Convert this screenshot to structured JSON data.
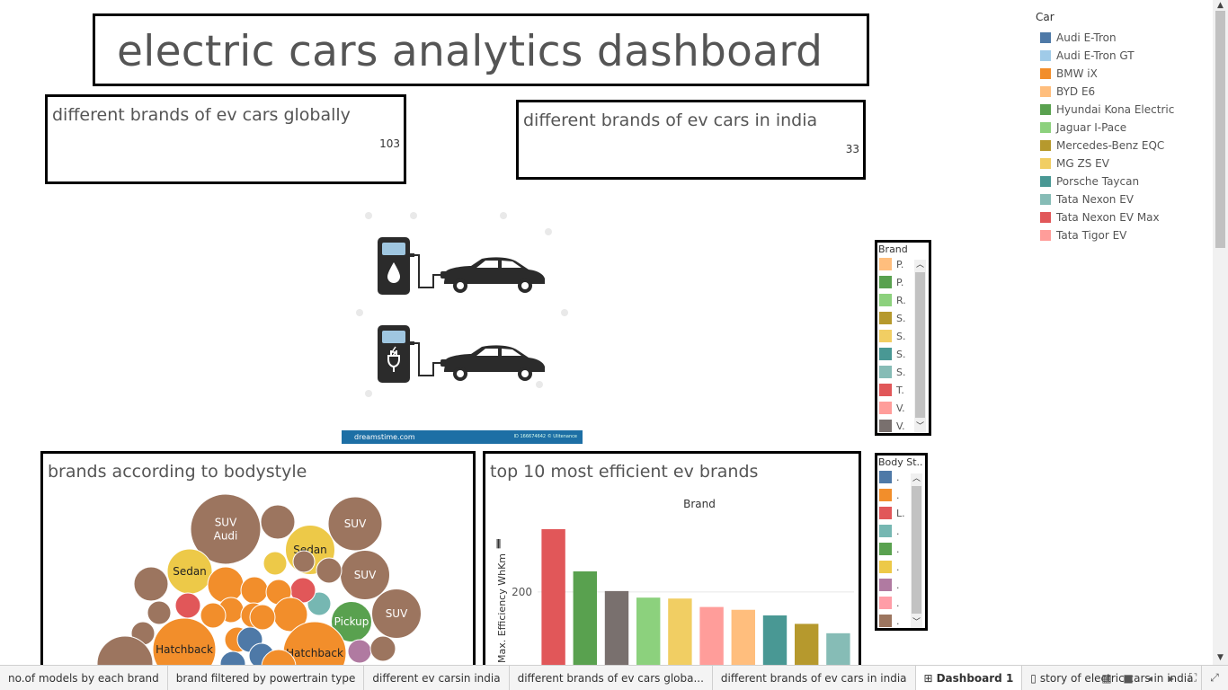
{
  "dashboard": {
    "title": "electric cars analytics dashboard"
  },
  "kpis": [
    {
      "label": "different brands of ev cars globally",
      "value": "103"
    },
    {
      "label": "different brands of ev cars in india",
      "value": "33"
    }
  ],
  "stock_image": {
    "watermark": "dreamstime.com",
    "credit": "ID 166674642 © Ulitenance"
  },
  "legend_car": {
    "title": "Car",
    "items": [
      {
        "label": "Audi E-Tron",
        "color": "#4e79a7"
      },
      {
        "label": "Audi E-Tron GT",
        "color": "#a0cbe8"
      },
      {
        "label": "BMW iX",
        "color": "#f28e2b"
      },
      {
        "label": "BYD E6",
        "color": "#ffbe7d"
      },
      {
        "label": "Hyundai Kona Electric",
        "color": "#59a14f"
      },
      {
        "label": "Jaguar I-Pace",
        "color": "#8cd17d"
      },
      {
        "label": "Mercedes-Benz EQC",
        "color": "#b6992d"
      },
      {
        "label": "MG ZS EV",
        "color": "#f1ce63"
      },
      {
        "label": "Porsche Taycan",
        "color": "#499894"
      },
      {
        "label": "Tata Nexon EV",
        "color": "#86bcb6"
      },
      {
        "label": "Tata Nexon EV Max",
        "color": "#e15759"
      },
      {
        "label": "Tata Tigor EV",
        "color": "#ff9d9a"
      }
    ]
  },
  "legend_brand": {
    "title": "Brand",
    "items": [
      {
        "label": "P.",
        "color": "#ffbe7d"
      },
      {
        "label": "P.",
        "color": "#59a14f"
      },
      {
        "label": "R.",
        "color": "#8cd17d"
      },
      {
        "label": "S.",
        "color": "#b6992d"
      },
      {
        "label": "S.",
        "color": "#f1ce63"
      },
      {
        "label": "S.",
        "color": "#499894"
      },
      {
        "label": "S.",
        "color": "#86bcb6"
      },
      {
        "label": "T.",
        "color": "#e15759"
      },
      {
        "label": "V.",
        "color": "#ff9d9a"
      },
      {
        "label": "V.",
        "color": "#79706e"
      }
    ]
  },
  "legend_body": {
    "title": "Body St..",
    "items": [
      {
        "label": ".",
        "color": "#4e79a7"
      },
      {
        "label": ".",
        "color": "#f28e2b"
      },
      {
        "label": "L.",
        "color": "#e15759"
      },
      {
        "label": ".",
        "color": "#76b7b2"
      },
      {
        "label": ".",
        "color": "#59a14f"
      },
      {
        "label": ".",
        "color": "#edc948"
      },
      {
        "label": ".",
        "color": "#b07aa1"
      },
      {
        "label": ".",
        "color": "#ff9da7"
      },
      {
        "label": ".",
        "color": "#9c755f"
      }
    ]
  },
  "chart_data": [
    {
      "type": "bubble",
      "title": "brands according to bodystyle",
      "bubbles": [
        {
          "label": "SUV\nAudi",
          "color": "#9c755f",
          "size": 78
        },
        {
          "label": "",
          "color": "#9c755f",
          "size": 38
        },
        {
          "label": "SUV",
          "color": "#9c755f",
          "size": 60
        },
        {
          "label": "Sedan",
          "color": "#edc948",
          "size": 55
        },
        {
          "label": "Sedan",
          "color": "#edc948",
          "size": 50
        },
        {
          "label": "SUV",
          "color": "#9c755f",
          "size": 55
        },
        {
          "label": "",
          "color": "#9c755f",
          "size": 38
        },
        {
          "label": "",
          "color": "#f28e2b",
          "size": 40
        },
        {
          "label": "",
          "color": "#f28e2b",
          "size": 30
        },
        {
          "label": "",
          "color": "#edc948",
          "size": 26
        },
        {
          "label": "",
          "color": "#9c755f",
          "size": 24
        },
        {
          "label": "",
          "color": "#9c755f",
          "size": 28
        },
        {
          "label": "SUV",
          "color": "#9c755f",
          "size": 55
        },
        {
          "label": "Pickup",
          "color": "#59a14f",
          "size": 45
        },
        {
          "label": "",
          "color": "#76b7b2",
          "size": 26
        },
        {
          "label": "",
          "color": "#e15759",
          "size": 28
        },
        {
          "label": "",
          "color": "#f28e2b",
          "size": 28
        },
        {
          "label": "",
          "color": "#f28e2b",
          "size": 28
        },
        {
          "label": "",
          "color": "#f28e2b",
          "size": 28
        },
        {
          "label": "",
          "color": "#f28e2b",
          "size": 38
        },
        {
          "label": "",
          "color": "#9c755f",
          "size": 26
        },
        {
          "label": "",
          "color": "#9c755f",
          "size": 26
        },
        {
          "label": "",
          "color": "#e15759",
          "size": 28
        },
        {
          "label": "",
          "color": "#f28e2b",
          "size": 28
        },
        {
          "label": "",
          "color": "#f28e2b",
          "size": 28
        },
        {
          "label": "",
          "color": "#f28e2b",
          "size": 28
        },
        {
          "label": "Hatchback",
          "color": "#f28e2b",
          "size": 70
        },
        {
          "label": "",
          "color": "#4e79a7",
          "size": 28
        },
        {
          "label": "",
          "color": "#4e79a7",
          "size": 28
        },
        {
          "label": "Hatchback",
          "color": "#f28e2b",
          "size": 70
        },
        {
          "label": "",
          "color": "#b07aa1",
          "size": 26
        },
        {
          "label": "",
          "color": "#9c755f",
          "size": 28
        },
        {
          "label": "",
          "color": "#9c755f",
          "size": 62
        },
        {
          "label": "",
          "color": "#f28e2b",
          "size": 38
        },
        {
          "label": "",
          "color": "#4e79a7",
          "size": 28
        }
      ]
    },
    {
      "type": "bar",
      "title": "top 10 most efficient ev brands",
      "xlabel": "Brand",
      "ylabel": "Max. Efficiency WhKm",
      "ylim": [
        60,
        290
      ],
      "yticks": [
        100,
        200
      ],
      "values": [
        267,
        222,
        201,
        194,
        193,
        184,
        181,
        175,
        166,
        156
      ],
      "colors": [
        "#e15759",
        "#59a14f",
        "#79706e",
        "#8cd17d",
        "#f1ce63",
        "#ff9d9a",
        "#ffbe7d",
        "#499894",
        "#b6992d",
        "#86bcb6"
      ]
    }
  ],
  "tabs": [
    {
      "label": "no.of models by each brand",
      "active": false,
      "icon": ""
    },
    {
      "label": "brand filtered by powertrain type",
      "active": false,
      "icon": ""
    },
    {
      "label": "different ev carsin india",
      "active": false,
      "icon": ""
    },
    {
      "label": "different brands of ev cars globa...",
      "active": false,
      "icon": ""
    },
    {
      "label": "different brands of ev cars in india",
      "active": false,
      "icon": ""
    },
    {
      "label": "Dashboard 1",
      "active": true,
      "icon": "⊞"
    },
    {
      "label": "story of electric cars in india",
      "active": false,
      "icon": "▯"
    }
  ]
}
